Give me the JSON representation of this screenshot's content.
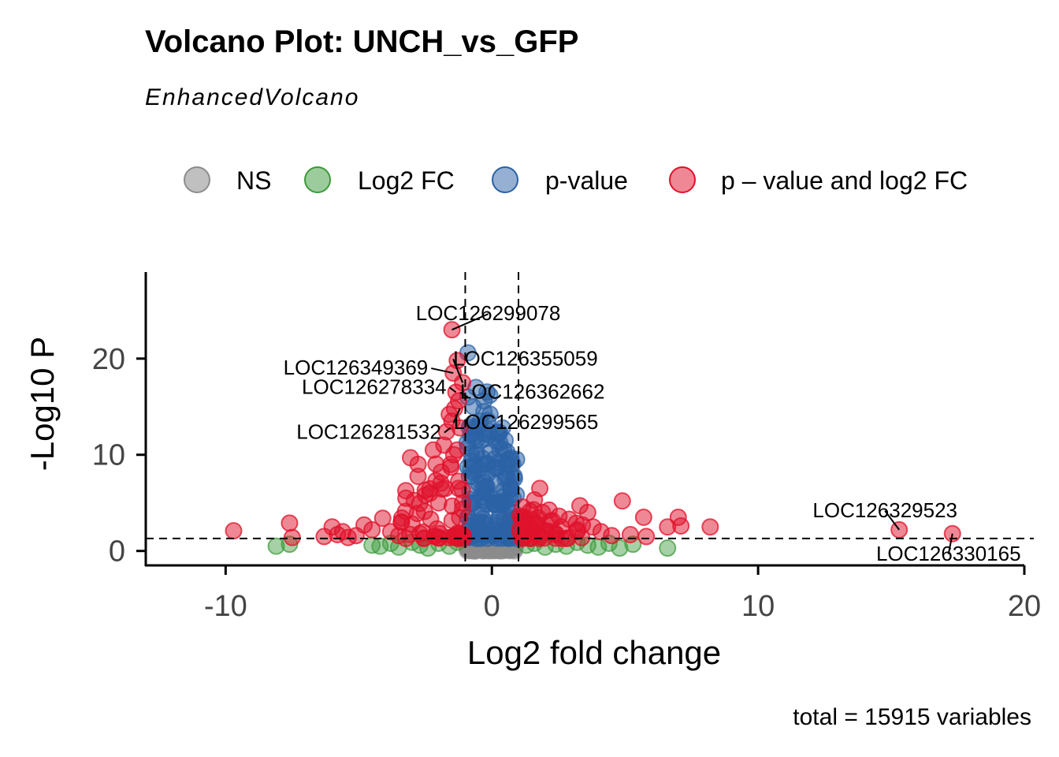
{
  "chart_data": {
    "type": "scatter",
    "title": "Volcano Plot: UNCH_vs_GFP",
    "subtitle": "EnhancedVolcano",
    "xlabel": "Log2 fold change",
    "ylabel": "-Log10 P",
    "caption": "total = 15915 variables",
    "xlim": [
      -13,
      20
    ],
    "ylim": [
      -1.5,
      29
    ],
    "x_ticks": [
      -10,
      0,
      10,
      20
    ],
    "y_ticks": [
      0,
      10,
      20
    ],
    "fc_cutoff": 1,
    "p_cutoff_log10": 1.3,
    "legend": {
      "position": "top",
      "items": [
        {
          "key": "ns",
          "label": "NS",
          "color": "#8c8c8c"
        },
        {
          "key": "fc",
          "label": "Log2 FC",
          "color": "#3a9a3a"
        },
        {
          "key": "p",
          "label": "p-value",
          "color": "#2b62a6"
        },
        {
          "key": "both",
          "label": "p – value and log2 FC",
          "color": "#e0112b"
        }
      ]
    },
    "points": {
      "both": [
        [
          -9.7,
          2.1
        ],
        [
          -7.6,
          2.9
        ],
        [
          -7.5,
          1.4
        ],
        [
          -6.3,
          1.5
        ],
        [
          -6.0,
          2.5
        ],
        [
          -5.8,
          1.7
        ],
        [
          -5.6,
          2.0
        ],
        [
          -5.4,
          1.4
        ],
        [
          -5.1,
          1.6
        ],
        [
          -4.8,
          2.7
        ],
        [
          -4.5,
          2.2
        ],
        [
          -4.1,
          3.4
        ],
        [
          -3.8,
          2.0
        ],
        [
          -3.5,
          1.6
        ],
        [
          -3.4,
          3.0
        ],
        [
          -3.0,
          2.8
        ],
        [
          -2.8,
          3.9
        ],
        [
          -2.7,
          1.8
        ],
        [
          -2.5,
          5.8
        ],
        [
          -2.3,
          3.3
        ],
        [
          -2.2,
          10.5
        ],
        [
          -2.1,
          7.3
        ],
        [
          -2.0,
          5.0
        ],
        [
          -1.9,
          8.2
        ],
        [
          -1.8,
          11.0
        ],
        [
          -1.75,
          6.5
        ],
        [
          -1.7,
          12.4
        ],
        [
          -1.6,
          14.2
        ],
        [
          -1.55,
          9.0
        ],
        [
          -1.5,
          13.5
        ],
        [
          -1.45,
          18.5
        ],
        [
          -1.4,
          14.8
        ],
        [
          -1.35,
          16.5
        ],
        [
          -1.3,
          19.8
        ],
        [
          -1.25,
          15.6
        ],
        [
          -1.2,
          12.8
        ],
        [
          -1.5,
          23.0
        ],
        [
          -1.1,
          17.5
        ],
        [
          -1.3,
          10.5
        ],
        [
          1.2,
          3.5
        ],
        [
          1.4,
          2.2
        ],
        [
          1.6,
          5.3
        ],
        [
          1.7,
          2.8
        ],
        [
          1.8,
          6.5
        ],
        [
          1.9,
          4.0
        ],
        [
          2.0,
          2.0
        ],
        [
          2.2,
          3.1
        ],
        [
          2.4,
          1.8
        ],
        [
          2.6,
          2.5
        ],
        [
          2.9,
          3.3
        ],
        [
          3.2,
          2.2
        ],
        [
          3.4,
          2.7
        ],
        [
          3.6,
          4.0
        ],
        [
          3.8,
          2.5
        ],
        [
          4.1,
          2.0
        ],
        [
          4.5,
          1.6
        ],
        [
          4.9,
          5.2
        ],
        [
          5.2,
          1.7
        ],
        [
          5.7,
          3.5
        ],
        [
          5.8,
          1.5
        ],
        [
          6.6,
          2.5
        ],
        [
          7.0,
          3.5
        ],
        [
          7.1,
          2.6
        ],
        [
          8.2,
          2.5
        ],
        [
          15.3,
          2.2
        ],
        [
          17.3,
          1.8
        ]
      ],
      "p": [
        [
          -0.9,
          20.6
        ],
        [
          -0.6,
          17.0
        ],
        [
          -0.7,
          15.0
        ],
        [
          -0.5,
          13.0
        ],
        [
          -0.4,
          11.5
        ],
        [
          -0.6,
          10.0
        ],
        [
          -0.3,
          9.0
        ],
        [
          -0.8,
          8.5
        ],
        [
          -0.5,
          7.0
        ],
        [
          -0.2,
          6.0
        ],
        [
          -0.7,
          5.0
        ],
        [
          -0.4,
          4.0
        ],
        [
          -0.9,
          3.5
        ],
        [
          -0.3,
          2.8
        ],
        [
          -0.6,
          2.0
        ],
        [
          0.3,
          3.5
        ],
        [
          0.4,
          5.0
        ],
        [
          0.5,
          7.5
        ],
        [
          0.6,
          9.5
        ],
        [
          0.5,
          11.5
        ],
        [
          0.4,
          12.8
        ],
        [
          0.3,
          10.5
        ],
        [
          0.7,
          8.0
        ],
        [
          0.8,
          5.5
        ],
        [
          0.9,
          3.0
        ],
        [
          0.2,
          2.2
        ],
        [
          -0.8,
          12.0
        ],
        [
          -0.9,
          16.0
        ],
        [
          -0.3,
          14.5
        ]
      ],
      "fc": [
        [
          -8.1,
          0.5
        ],
        [
          -7.6,
          0.7
        ],
        [
          -4.5,
          0.6
        ],
        [
          -4.2,
          0.5
        ],
        [
          -3.8,
          0.8
        ],
        [
          -3.5,
          0.4
        ],
        [
          -3.0,
          0.9
        ],
        [
          -2.7,
          0.6
        ],
        [
          -2.4,
          0.3
        ],
        [
          -2.0,
          0.8
        ],
        [
          -1.6,
          0.5
        ],
        [
          -1.3,
          0.9
        ],
        [
          1.3,
          0.6
        ],
        [
          1.6,
          0.8
        ],
        [
          2.0,
          0.4
        ],
        [
          2.4,
          0.7
        ],
        [
          2.8,
          0.5
        ],
        [
          3.2,
          0.9
        ],
        [
          3.6,
          0.6
        ],
        [
          4.0,
          0.4
        ],
        [
          4.4,
          0.8
        ],
        [
          4.8,
          0.3
        ],
        [
          5.3,
          0.7
        ],
        [
          6.6,
          0.3
        ]
      ],
      "ns_count": 260
    },
    "labels": [
      {
        "gene": "LOC126299078",
        "x": -1.5,
        "y": 23.0
      },
      {
        "gene": "LOC126349369",
        "x": -1.45,
        "y": 18.5
      },
      {
        "gene": "LOC126355059",
        "x": -1.1,
        "y": 17.5
      },
      {
        "gene": "LOC126278334",
        "x": -1.35,
        "y": 16.5
      },
      {
        "gene": "LOC126362662",
        "x": -0.9,
        "y": 16.0
      },
      {
        "gene": "LOC126299565",
        "x": -1.2,
        "y": 14.8
      },
      {
        "gene": "LOC126281532",
        "x": -1.55,
        "y": 12.8
      },
      {
        "gene": "LOC126329523",
        "x": 15.3,
        "y": 2.2
      },
      {
        "gene": "LOC126330165",
        "x": 17.3,
        "y": 1.8
      }
    ]
  }
}
